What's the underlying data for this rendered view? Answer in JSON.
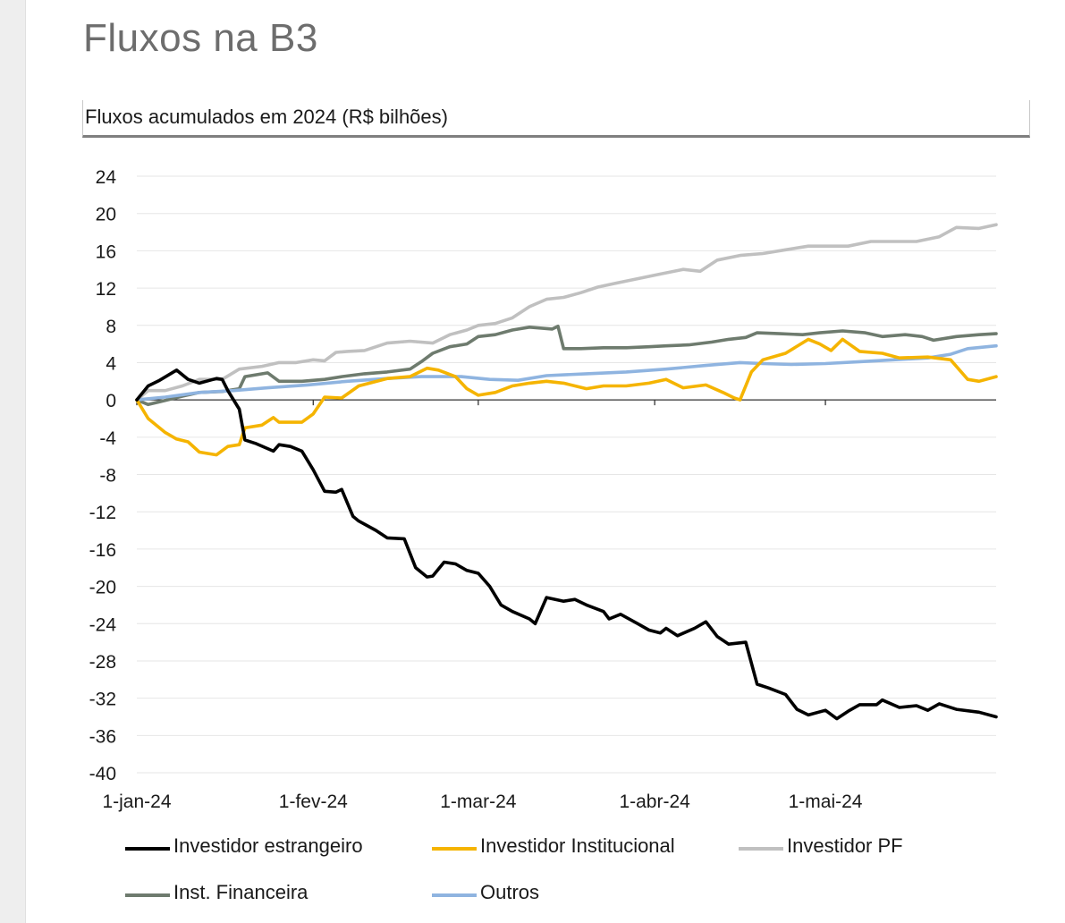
{
  "page": {
    "title": "Fluxos na B3"
  },
  "chart_data": {
    "type": "line",
    "title": "Fluxos acumulados em 2024 (R$ bilhões)",
    "xlabel": "",
    "ylabel": "",
    "ylim": [
      -40,
      24
    ],
    "yticks": [
      24,
      20,
      16,
      12,
      8,
      4,
      0,
      -4,
      -8,
      -12,
      -16,
      -20,
      -24,
      -28,
      -32,
      -36,
      -40
    ],
    "xlim": [
      "2024-01-01",
      "2024-05-31"
    ],
    "xticks": [
      {
        "date": "2024-01-01",
        "label": "1-jan-24"
      },
      {
        "date": "2024-02-01",
        "label": "1-fev-24"
      },
      {
        "date": "2024-03-01",
        "label": "1-mar-24"
      },
      {
        "date": "2024-04-01",
        "label": "1-abr-24"
      },
      {
        "date": "2024-05-01",
        "label": "1-mai-24"
      }
    ],
    "grid": true,
    "legend_position": "bottom",
    "series": [
      {
        "name": "Investidor estrangeiro",
        "color": "#000000",
        "points": [
          [
            "2024-01-01",
            0
          ],
          [
            "2024-01-03",
            1.5
          ],
          [
            "2024-01-05",
            2.1
          ],
          [
            "2024-01-08",
            3.2
          ],
          [
            "2024-01-10",
            2.2
          ],
          [
            "2024-01-12",
            1.8
          ],
          [
            "2024-01-15",
            2.3
          ],
          [
            "2024-01-16",
            2.2
          ],
          [
            "2024-01-17",
            1.0
          ],
          [
            "2024-01-19",
            -1.0
          ],
          [
            "2024-01-20",
            -4.3
          ],
          [
            "2024-01-22",
            -4.7
          ],
          [
            "2024-01-25",
            -5.5
          ],
          [
            "2024-01-26",
            -4.8
          ],
          [
            "2024-01-28",
            -5.0
          ],
          [
            "2024-01-30",
            -5.5
          ],
          [
            "2024-02-01",
            -7.5
          ],
          [
            "2024-02-03",
            -9.8
          ],
          [
            "2024-02-05",
            -9.9
          ],
          [
            "2024-02-06",
            -9.6
          ],
          [
            "2024-02-08",
            -12.5
          ],
          [
            "2024-02-09",
            -13.0
          ],
          [
            "2024-02-12",
            -14.0
          ],
          [
            "2024-02-14",
            -14.8
          ],
          [
            "2024-02-17",
            -14.9
          ],
          [
            "2024-02-19",
            -18.0
          ],
          [
            "2024-02-21",
            -19.0
          ],
          [
            "2024-02-22",
            -18.9
          ],
          [
            "2024-02-24",
            -17.4
          ],
          [
            "2024-02-26",
            -17.6
          ],
          [
            "2024-02-28",
            -18.3
          ],
          [
            "2024-03-01",
            -18.6
          ],
          [
            "2024-03-03",
            -20.0
          ],
          [
            "2024-03-05",
            -22.0
          ],
          [
            "2024-03-07",
            -22.7
          ],
          [
            "2024-03-10",
            -23.5
          ],
          [
            "2024-03-11",
            -24.0
          ],
          [
            "2024-03-13",
            -21.2
          ],
          [
            "2024-03-16",
            -21.6
          ],
          [
            "2024-03-18",
            -21.4
          ],
          [
            "2024-03-20",
            -22.0
          ],
          [
            "2024-03-23",
            -22.7
          ],
          [
            "2024-03-24",
            -23.5
          ],
          [
            "2024-03-26",
            -23.0
          ],
          [
            "2024-03-29",
            -24.0
          ],
          [
            "2024-03-31",
            -24.7
          ],
          [
            "2024-04-02",
            -25.0
          ],
          [
            "2024-04-03",
            -24.5
          ],
          [
            "2024-04-05",
            -25.3
          ],
          [
            "2024-04-08",
            -24.5
          ],
          [
            "2024-04-10",
            -23.8
          ],
          [
            "2024-04-12",
            -25.4
          ],
          [
            "2024-04-14",
            -26.2
          ],
          [
            "2024-04-17",
            -26.0
          ],
          [
            "2024-04-19",
            -30.5
          ],
          [
            "2024-04-21",
            -30.9
          ],
          [
            "2024-04-24",
            -31.6
          ],
          [
            "2024-04-26",
            -33.2
          ],
          [
            "2024-04-28",
            -33.8
          ],
          [
            "2024-05-01",
            -33.3
          ],
          [
            "2024-05-03",
            -34.2
          ],
          [
            "2024-05-05",
            -33.4
          ],
          [
            "2024-05-07",
            -32.7
          ],
          [
            "2024-05-10",
            -32.7
          ],
          [
            "2024-05-11",
            -32.2
          ],
          [
            "2024-05-14",
            -33.0
          ],
          [
            "2024-05-17",
            -32.8
          ],
          [
            "2024-05-19",
            -33.3
          ],
          [
            "2024-05-21",
            -32.6
          ],
          [
            "2024-05-24",
            -33.2
          ],
          [
            "2024-05-28",
            -33.5
          ],
          [
            "2024-05-31",
            -34.0
          ]
        ]
      },
      {
        "name": "Investidor Institucional",
        "color": "#f5b400",
        "points": [
          [
            "2024-01-01",
            0
          ],
          [
            "2024-01-03",
            -2.0
          ],
          [
            "2024-01-06",
            -3.5
          ],
          [
            "2024-01-08",
            -4.2
          ],
          [
            "2024-01-10",
            -4.5
          ],
          [
            "2024-01-12",
            -5.6
          ],
          [
            "2024-01-15",
            -5.9
          ],
          [
            "2024-01-17",
            -5.0
          ],
          [
            "2024-01-19",
            -4.8
          ],
          [
            "2024-01-20",
            -3.0
          ],
          [
            "2024-01-23",
            -2.7
          ],
          [
            "2024-01-25",
            -1.9
          ],
          [
            "2024-01-26",
            -2.4
          ],
          [
            "2024-01-30",
            -2.4
          ],
          [
            "2024-02-01",
            -1.5
          ],
          [
            "2024-02-03",
            0.3
          ],
          [
            "2024-02-06",
            0.2
          ],
          [
            "2024-02-09",
            1.5
          ],
          [
            "2024-02-14",
            2.3
          ],
          [
            "2024-02-18",
            2.5
          ],
          [
            "2024-02-21",
            3.4
          ],
          [
            "2024-02-23",
            3.2
          ],
          [
            "2024-02-26",
            2.5
          ],
          [
            "2024-02-28",
            1.2
          ],
          [
            "2024-03-01",
            0.5
          ],
          [
            "2024-03-04",
            0.8
          ],
          [
            "2024-03-07",
            1.5
          ],
          [
            "2024-03-10",
            1.8
          ],
          [
            "2024-03-13",
            2.0
          ],
          [
            "2024-03-16",
            1.8
          ],
          [
            "2024-03-20",
            1.2
          ],
          [
            "2024-03-23",
            1.5
          ],
          [
            "2024-03-27",
            1.5
          ],
          [
            "2024-03-31",
            1.8
          ],
          [
            "2024-04-03",
            2.2
          ],
          [
            "2024-04-06",
            1.3
          ],
          [
            "2024-04-10",
            1.6
          ],
          [
            "2024-04-13",
            0.8
          ],
          [
            "2024-04-15",
            0.2
          ],
          [
            "2024-04-16",
            0.0
          ],
          [
            "2024-04-18",
            3.0
          ],
          [
            "2024-04-20",
            4.3
          ],
          [
            "2024-04-24",
            5.0
          ],
          [
            "2024-04-28",
            6.5
          ],
          [
            "2024-04-30",
            6.0
          ],
          [
            "2024-05-02",
            5.3
          ],
          [
            "2024-05-04",
            6.5
          ],
          [
            "2024-05-07",
            5.2
          ],
          [
            "2024-05-11",
            5.0
          ],
          [
            "2024-05-14",
            4.5
          ],
          [
            "2024-05-19",
            4.6
          ],
          [
            "2024-05-23",
            4.3
          ],
          [
            "2024-05-26",
            2.2
          ],
          [
            "2024-05-28",
            2.0
          ],
          [
            "2024-05-31",
            2.5
          ]
        ]
      },
      {
        "name": "Investidor PF",
        "color": "#c0c0c0",
        "points": [
          [
            "2024-01-01",
            0
          ],
          [
            "2024-01-03",
            1.0
          ],
          [
            "2024-01-06",
            1.0
          ],
          [
            "2024-01-09",
            1.5
          ],
          [
            "2024-01-12",
            2.2
          ],
          [
            "2024-01-16",
            2.2
          ],
          [
            "2024-01-19",
            3.3
          ],
          [
            "2024-01-23",
            3.6
          ],
          [
            "2024-01-26",
            4.0
          ],
          [
            "2024-01-29",
            4.0
          ],
          [
            "2024-02-01",
            4.3
          ],
          [
            "2024-02-03",
            4.2
          ],
          [
            "2024-02-05",
            5.1
          ],
          [
            "2024-02-07",
            5.2
          ],
          [
            "2024-02-10",
            5.3
          ],
          [
            "2024-02-14",
            6.1
          ],
          [
            "2024-02-18",
            6.3
          ],
          [
            "2024-02-22",
            6.1
          ],
          [
            "2024-02-25",
            7.0
          ],
          [
            "2024-02-28",
            7.5
          ],
          [
            "2024-03-01",
            8.0
          ],
          [
            "2024-03-04",
            8.2
          ],
          [
            "2024-03-07",
            8.8
          ],
          [
            "2024-03-10",
            10.0
          ],
          [
            "2024-03-13",
            10.8
          ],
          [
            "2024-03-16",
            11.0
          ],
          [
            "2024-03-19",
            11.5
          ],
          [
            "2024-03-22",
            12.1
          ],
          [
            "2024-03-25",
            12.5
          ],
          [
            "2024-03-29",
            13.0
          ],
          [
            "2024-04-02",
            13.5
          ],
          [
            "2024-04-06",
            14.0
          ],
          [
            "2024-04-09",
            13.8
          ],
          [
            "2024-04-12",
            15.0
          ],
          [
            "2024-04-16",
            15.5
          ],
          [
            "2024-04-20",
            15.7
          ],
          [
            "2024-04-24",
            16.1
          ],
          [
            "2024-04-28",
            16.5
          ],
          [
            "2024-05-01",
            16.5
          ],
          [
            "2024-05-05",
            16.5
          ],
          [
            "2024-05-09",
            17.0
          ],
          [
            "2024-05-13",
            17.0
          ],
          [
            "2024-05-17",
            17.0
          ],
          [
            "2024-05-21",
            17.5
          ],
          [
            "2024-05-24",
            18.5
          ],
          [
            "2024-05-28",
            18.4
          ],
          [
            "2024-05-31",
            18.8
          ]
        ]
      },
      {
        "name": "Inst. Financeira",
        "color": "#6e7b6e",
        "points": [
          [
            "2024-01-01",
            0
          ],
          [
            "2024-01-03",
            -0.5
          ],
          [
            "2024-01-05",
            -0.2
          ],
          [
            "2024-01-09",
            0.4
          ],
          [
            "2024-01-12",
            0.8
          ],
          [
            "2024-01-16",
            0.9
          ],
          [
            "2024-01-19",
            1.2
          ],
          [
            "2024-01-20",
            2.5
          ],
          [
            "2024-01-24",
            2.9
          ],
          [
            "2024-01-26",
            2.0
          ],
          [
            "2024-01-30",
            2.0
          ],
          [
            "2024-02-03",
            2.2
          ],
          [
            "2024-02-06",
            2.5
          ],
          [
            "2024-02-10",
            2.8
          ],
          [
            "2024-02-14",
            3.0
          ],
          [
            "2024-02-18",
            3.3
          ],
          [
            "2024-02-20",
            4.1
          ],
          [
            "2024-02-22",
            5.0
          ],
          [
            "2024-02-25",
            5.7
          ],
          [
            "2024-02-28",
            6.0
          ],
          [
            "2024-03-01",
            6.8
          ],
          [
            "2024-03-04",
            7.0
          ],
          [
            "2024-03-07",
            7.5
          ],
          [
            "2024-03-10",
            7.8
          ],
          [
            "2024-03-14",
            7.6
          ],
          [
            "2024-03-15",
            7.9
          ],
          [
            "2024-03-16",
            5.5
          ],
          [
            "2024-03-19",
            5.5
          ],
          [
            "2024-03-23",
            5.6
          ],
          [
            "2024-03-27",
            5.6
          ],
          [
            "2024-03-31",
            5.7
          ],
          [
            "2024-04-03",
            5.8
          ],
          [
            "2024-04-07",
            5.9
          ],
          [
            "2024-04-11",
            6.2
          ],
          [
            "2024-04-14",
            6.5
          ],
          [
            "2024-04-17",
            6.7
          ],
          [
            "2024-04-19",
            7.2
          ],
          [
            "2024-04-23",
            7.1
          ],
          [
            "2024-04-27",
            7.0
          ],
          [
            "2024-04-30",
            7.2
          ],
          [
            "2024-05-04",
            7.4
          ],
          [
            "2024-05-08",
            7.2
          ],
          [
            "2024-05-11",
            6.8
          ],
          [
            "2024-05-15",
            7.0
          ],
          [
            "2024-05-18",
            6.8
          ],
          [
            "2024-05-20",
            6.4
          ],
          [
            "2024-05-24",
            6.8
          ],
          [
            "2024-05-28",
            7.0
          ],
          [
            "2024-05-31",
            7.1
          ]
        ]
      },
      {
        "name": "Outros",
        "color": "#8fb4e0",
        "points": [
          [
            "2024-01-01",
            0
          ],
          [
            "2024-01-06",
            0.3
          ],
          [
            "2024-01-12",
            0.8
          ],
          [
            "2024-01-18",
            1.0
          ],
          [
            "2024-01-24",
            1.3
          ],
          [
            "2024-01-31",
            1.6
          ],
          [
            "2024-02-07",
            2.0
          ],
          [
            "2024-02-14",
            2.3
          ],
          [
            "2024-02-20",
            2.5
          ],
          [
            "2024-02-27",
            2.5
          ],
          [
            "2024-03-03",
            2.2
          ],
          [
            "2024-03-08",
            2.1
          ],
          [
            "2024-03-13",
            2.6
          ],
          [
            "2024-03-20",
            2.8
          ],
          [
            "2024-03-27",
            3.0
          ],
          [
            "2024-04-03",
            3.3
          ],
          [
            "2024-04-10",
            3.7
          ],
          [
            "2024-04-16",
            4.0
          ],
          [
            "2024-04-20",
            3.9
          ],
          [
            "2024-04-25",
            3.8
          ],
          [
            "2024-05-01",
            3.9
          ],
          [
            "2024-05-07",
            4.1
          ],
          [
            "2024-05-13",
            4.3
          ],
          [
            "2024-05-19",
            4.5
          ],
          [
            "2024-05-23",
            4.9
          ],
          [
            "2024-05-26",
            5.5
          ],
          [
            "2024-05-31",
            5.8
          ]
        ]
      }
    ]
  }
}
